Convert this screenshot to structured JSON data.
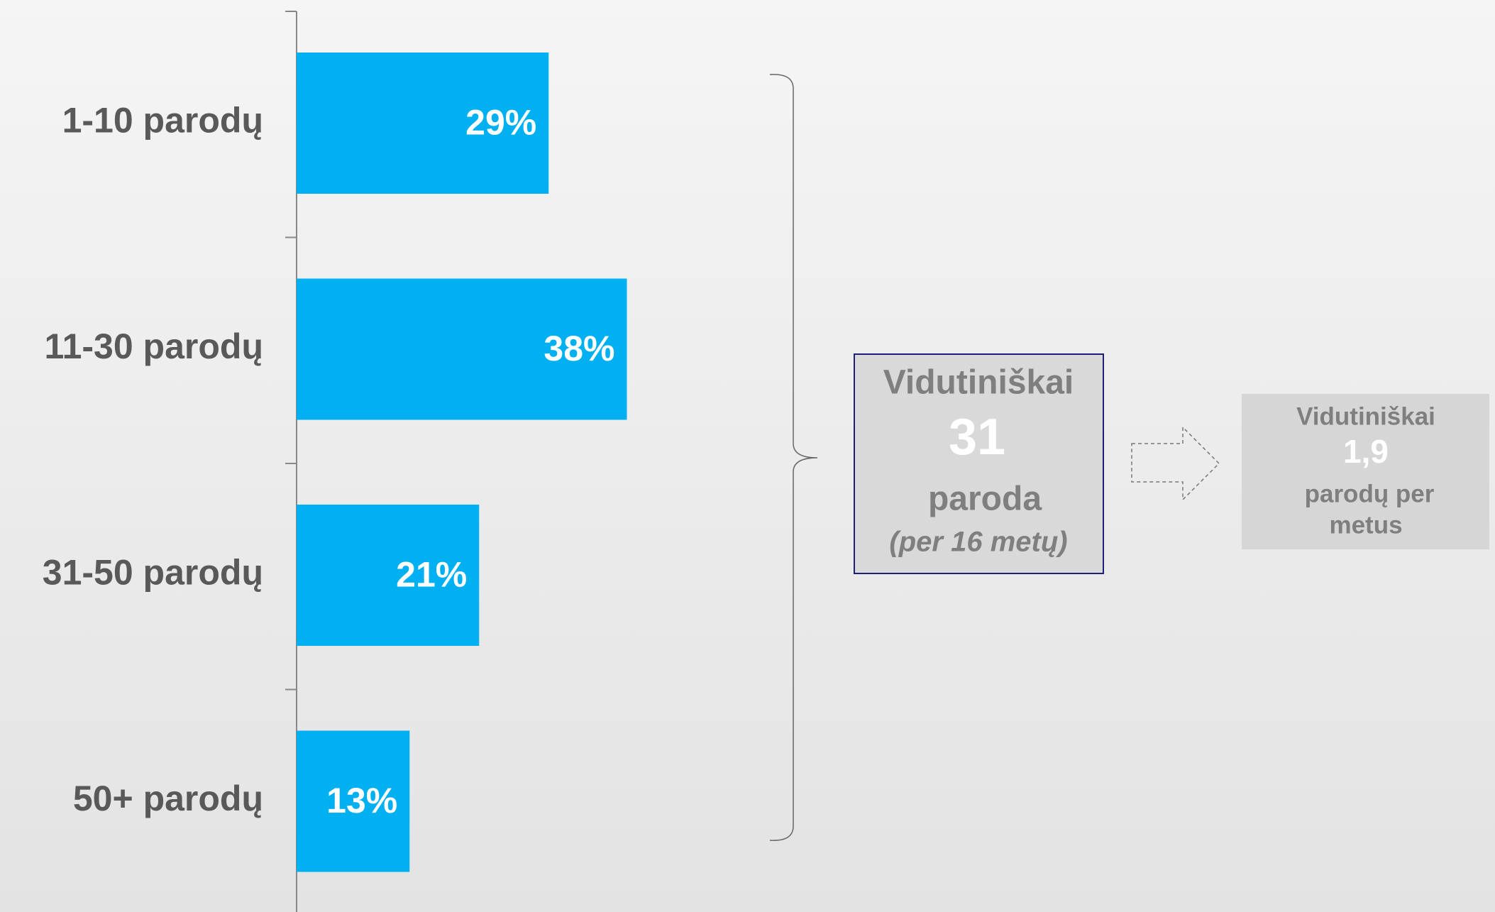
{
  "chart_data": {
    "type": "bar",
    "orientation": "horizontal",
    "categories": [
      "1-10 parodų",
      "11-30 parodų",
      "31-50 parodų",
      "50+ parodų"
    ],
    "values": [
      29,
      38,
      21,
      13
    ],
    "value_labels": [
      "29%",
      "38%",
      "21%",
      "13%"
    ],
    "color": "#00b0f0",
    "annotations": [
      {
        "lines": [
          "Vidutiniškai",
          "31",
          "paroda",
          "(per 16 metų)"
        ]
      },
      {
        "lines": [
          "Vidutiniškai",
          "1,9",
          "parodų per",
          "metus"
        ]
      }
    ]
  }
}
